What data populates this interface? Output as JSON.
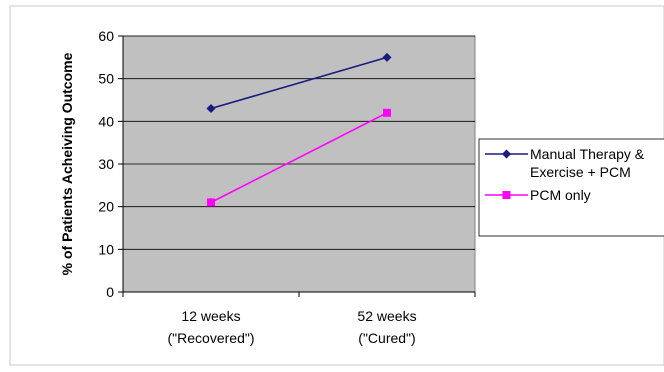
{
  "chart_data": {
    "type": "line",
    "categories": [
      [
        "12 weeks",
        "(\"Recovered\")"
      ],
      [
        "52 weeks",
        "(\"Cured\")"
      ]
    ],
    "series": [
      {
        "name": "Manual Therapy & Exercise + PCM",
        "legend_lines": [
          "Manual Therapy &",
          "Exercise + PCM"
        ],
        "values": [
          43,
          55
        ],
        "color": "#1a1a80",
        "marker": "diamond"
      },
      {
        "name": "PCM only",
        "legend_lines": [
          "PCM only"
        ],
        "values": [
          21,
          42
        ],
        "color": "#ff00ff",
        "marker": "square"
      }
    ],
    "ylabel": "% of Patients Acheiving Outcome",
    "xlabel": "",
    "title": "",
    "ylim": [
      0,
      60
    ],
    "yticks": [
      0,
      10,
      20,
      30,
      40,
      50,
      60
    ],
    "grid": true,
    "legend_position": "right",
    "plot_background": "#c0c0c0"
  }
}
